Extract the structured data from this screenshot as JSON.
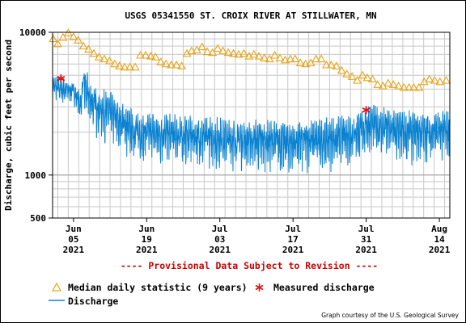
{
  "chart_data": {
    "type": "line",
    "title": "USGS 05341550 ST. CROIX RIVER AT STILLWATER, MN",
    "ylabel": "Discharge, cubic feet per second",
    "xlabel": "",
    "yscale": "log",
    "ylim": [
      500,
      10000
    ],
    "y_ticks": [
      {
        "value": 10000,
        "label": "10000"
      },
      {
        "value": 1000,
        "label": "1000"
      },
      {
        "value": 500,
        "label": "500"
      }
    ],
    "xlim_day": [
      -3,
      73
    ],
    "x_ticks": [
      {
        "day": 1,
        "lines": [
          "Jun",
          "05",
          "2021"
        ]
      },
      {
        "day": 15,
        "lines": [
          "Jun",
          "19",
          "2021"
        ]
      },
      {
        "day": 29,
        "lines": [
          "Jul",
          "03",
          "2021"
        ]
      },
      {
        "day": 43,
        "lines": [
          "Jul",
          "17",
          "2021"
        ]
      },
      {
        "day": 57,
        "lines": [
          "Jul",
          "31",
          "2021"
        ]
      },
      {
        "day": 71,
        "lines": [
          "Aug",
          "14",
          "2021"
        ]
      }
    ],
    "grid": true,
    "series": [
      {
        "name": "Median daily statistic (9 years)",
        "marker": "triangle",
        "color": "#e8a317",
        "points": [
          [
            -2.9,
            9000
          ],
          [
            -2.0,
            8300
          ],
          [
            -1.0,
            9200
          ],
          [
            0.0,
            9900
          ],
          [
            1.0,
            9300
          ],
          [
            1.9,
            8800
          ],
          [
            2.9,
            8000
          ],
          [
            3.9,
            7600
          ],
          [
            4.9,
            7100
          ],
          [
            5.9,
            6700
          ],
          [
            6.9,
            6500
          ],
          [
            7.9,
            6300
          ],
          [
            8.9,
            6000
          ],
          [
            9.8,
            5800
          ],
          [
            10.8,
            5700
          ],
          [
            11.8,
            5700
          ],
          [
            12.8,
            5700
          ],
          [
            13.8,
            6900
          ],
          [
            14.8,
            6900
          ],
          [
            15.8,
            6800
          ],
          [
            16.7,
            6700
          ],
          [
            17.7,
            6200
          ],
          [
            18.7,
            6000
          ],
          [
            19.7,
            5900
          ],
          [
            20.7,
            5900
          ],
          [
            21.7,
            5800
          ],
          [
            22.7,
            7100
          ],
          [
            23.6,
            7400
          ],
          [
            24.6,
            7500
          ],
          [
            25.6,
            7900
          ],
          [
            26.6,
            7300
          ],
          [
            27.6,
            7200
          ],
          [
            28.6,
            7700
          ],
          [
            29.6,
            7400
          ],
          [
            30.6,
            7200
          ],
          [
            31.6,
            7100
          ],
          [
            32.6,
            7000
          ],
          [
            33.6,
            7100
          ],
          [
            34.6,
            6800
          ],
          [
            35.5,
            7000
          ],
          [
            36.5,
            6800
          ],
          [
            37.5,
            6600
          ],
          [
            38.5,
            6500
          ],
          [
            39.5,
            6900
          ],
          [
            40.5,
            6600
          ],
          [
            41.5,
            6400
          ],
          [
            42.5,
            6500
          ],
          [
            43.4,
            6500
          ],
          [
            44.4,
            6100
          ],
          [
            45.4,
            6000
          ],
          [
            46.4,
            6100
          ],
          [
            47.4,
            6500
          ],
          [
            48.4,
            6500
          ],
          [
            49.4,
            5900
          ],
          [
            50.3,
            5900
          ],
          [
            51.3,
            5800
          ],
          [
            52.3,
            5400
          ],
          [
            53.3,
            5100
          ],
          [
            54.3,
            4900
          ],
          [
            55.3,
            4600
          ],
          [
            56.3,
            5000
          ],
          [
            57.2,
            4800
          ],
          [
            58.2,
            4700
          ],
          [
            59.2,
            4300
          ],
          [
            60.2,
            4200
          ],
          [
            61.2,
            4400
          ],
          [
            62.2,
            4300
          ],
          [
            63.2,
            4200
          ],
          [
            64.2,
            4100
          ],
          [
            65.2,
            4100
          ],
          [
            66.1,
            4100
          ],
          [
            67.1,
            4100
          ],
          [
            68.1,
            4500
          ],
          [
            69.1,
            4700
          ],
          [
            70.1,
            4600
          ],
          [
            71.1,
            4500
          ],
          [
            72.3,
            4600
          ]
        ]
      },
      {
        "name": "Measured discharge",
        "marker": "asterisk",
        "color": "#dd1111",
        "points": [
          [
            -1.4,
            4750
          ],
          [
            57.0,
            2850
          ]
        ]
      },
      {
        "name": "Discharge",
        "color": "#0a82d0",
        "anchors": [
          [
            -3,
            4200
          ],
          [
            -1,
            4000
          ],
          [
            1,
            3900
          ],
          [
            2.4,
            3100
          ],
          [
            2.9,
            4500
          ],
          [
            4,
            3400
          ],
          [
            6,
            2900
          ],
          [
            8,
            2750
          ],
          [
            10,
            2400
          ],
          [
            12,
            2100
          ],
          [
            14,
            2000
          ],
          [
            18,
            1950
          ],
          [
            22,
            1900
          ],
          [
            26,
            1850
          ],
          [
            30,
            1800
          ],
          [
            34,
            1750
          ],
          [
            38,
            1750
          ],
          [
            42,
            1700
          ],
          [
            46,
            1750
          ],
          [
            50,
            1800
          ],
          [
            53,
            1900
          ],
          [
            56,
            2050
          ],
          [
            57.5,
            2300
          ],
          [
            60,
            2150
          ],
          [
            64,
            2000
          ],
          [
            68,
            2000
          ],
          [
            73,
            2050
          ]
        ]
      }
    ],
    "footnote": "---- Provisional Data Subject to Revision ----",
    "legend": {
      "placement": "bottom",
      "entries": [
        "Median daily statistic (9 years)",
        "Measured discharge",
        "Discharge"
      ]
    },
    "credit": "Graph courtesy of the U.S. Geological Survey"
  }
}
